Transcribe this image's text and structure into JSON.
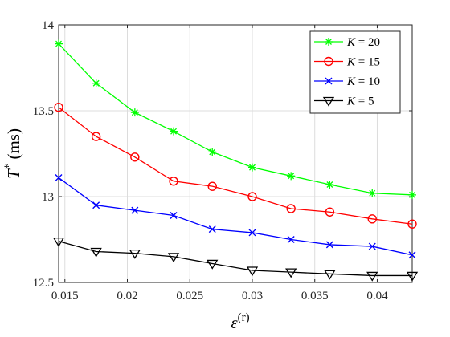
{
  "chart_data": {
    "type": "line",
    "xlabel": "ε",
    "xlabel_sup": "(r)",
    "ylabel": "T",
    "ylabel_sup": "*",
    "ylabel_unit": " (ms)",
    "xlim": [
      0.0145,
      0.0428
    ],
    "ylim": [
      12.5,
      14.0
    ],
    "xticks": [
      0.015,
      0.02,
      0.025,
      0.03,
      0.035,
      0.04
    ],
    "xtick_labels": [
      "0.015",
      "0.02",
      "0.025",
      "0.03",
      "0.035",
      "0.04"
    ],
    "yticks": [
      12.5,
      13.0,
      13.5,
      14.0
    ],
    "ytick_labels": [
      "12.5",
      "13",
      "13.5",
      "14"
    ],
    "grid": true,
    "legend_position": "top-right",
    "x": [
      0.0145,
      0.0175,
      0.0206,
      0.0237,
      0.0268,
      0.03,
      0.0331,
      0.0362,
      0.0396,
      0.0428
    ],
    "series": [
      {
        "name": "K = 20",
        "color": "#00ff00",
        "marker": "asterisk",
        "values": [
          13.89,
          13.66,
          13.49,
          13.38,
          13.26,
          13.17,
          13.12,
          13.07,
          13.02,
          13.01
        ]
      },
      {
        "name": "K = 15",
        "color": "#ff0000",
        "marker": "circle",
        "values": [
          13.52,
          13.35,
          13.23,
          13.09,
          13.06,
          13.0,
          12.93,
          12.91,
          12.87,
          12.84
        ]
      },
      {
        "name": "K = 10",
        "color": "#0000ff",
        "marker": "x",
        "values": [
          13.11,
          12.95,
          12.92,
          12.89,
          12.81,
          12.79,
          12.75,
          12.72,
          12.71,
          12.66
        ]
      },
      {
        "name": "K = 5",
        "color": "#000000",
        "marker": "triangle-down",
        "values": [
          12.74,
          12.68,
          12.67,
          12.65,
          12.61,
          12.57,
          12.56,
          12.55,
          12.54,
          12.54
        ]
      }
    ]
  }
}
